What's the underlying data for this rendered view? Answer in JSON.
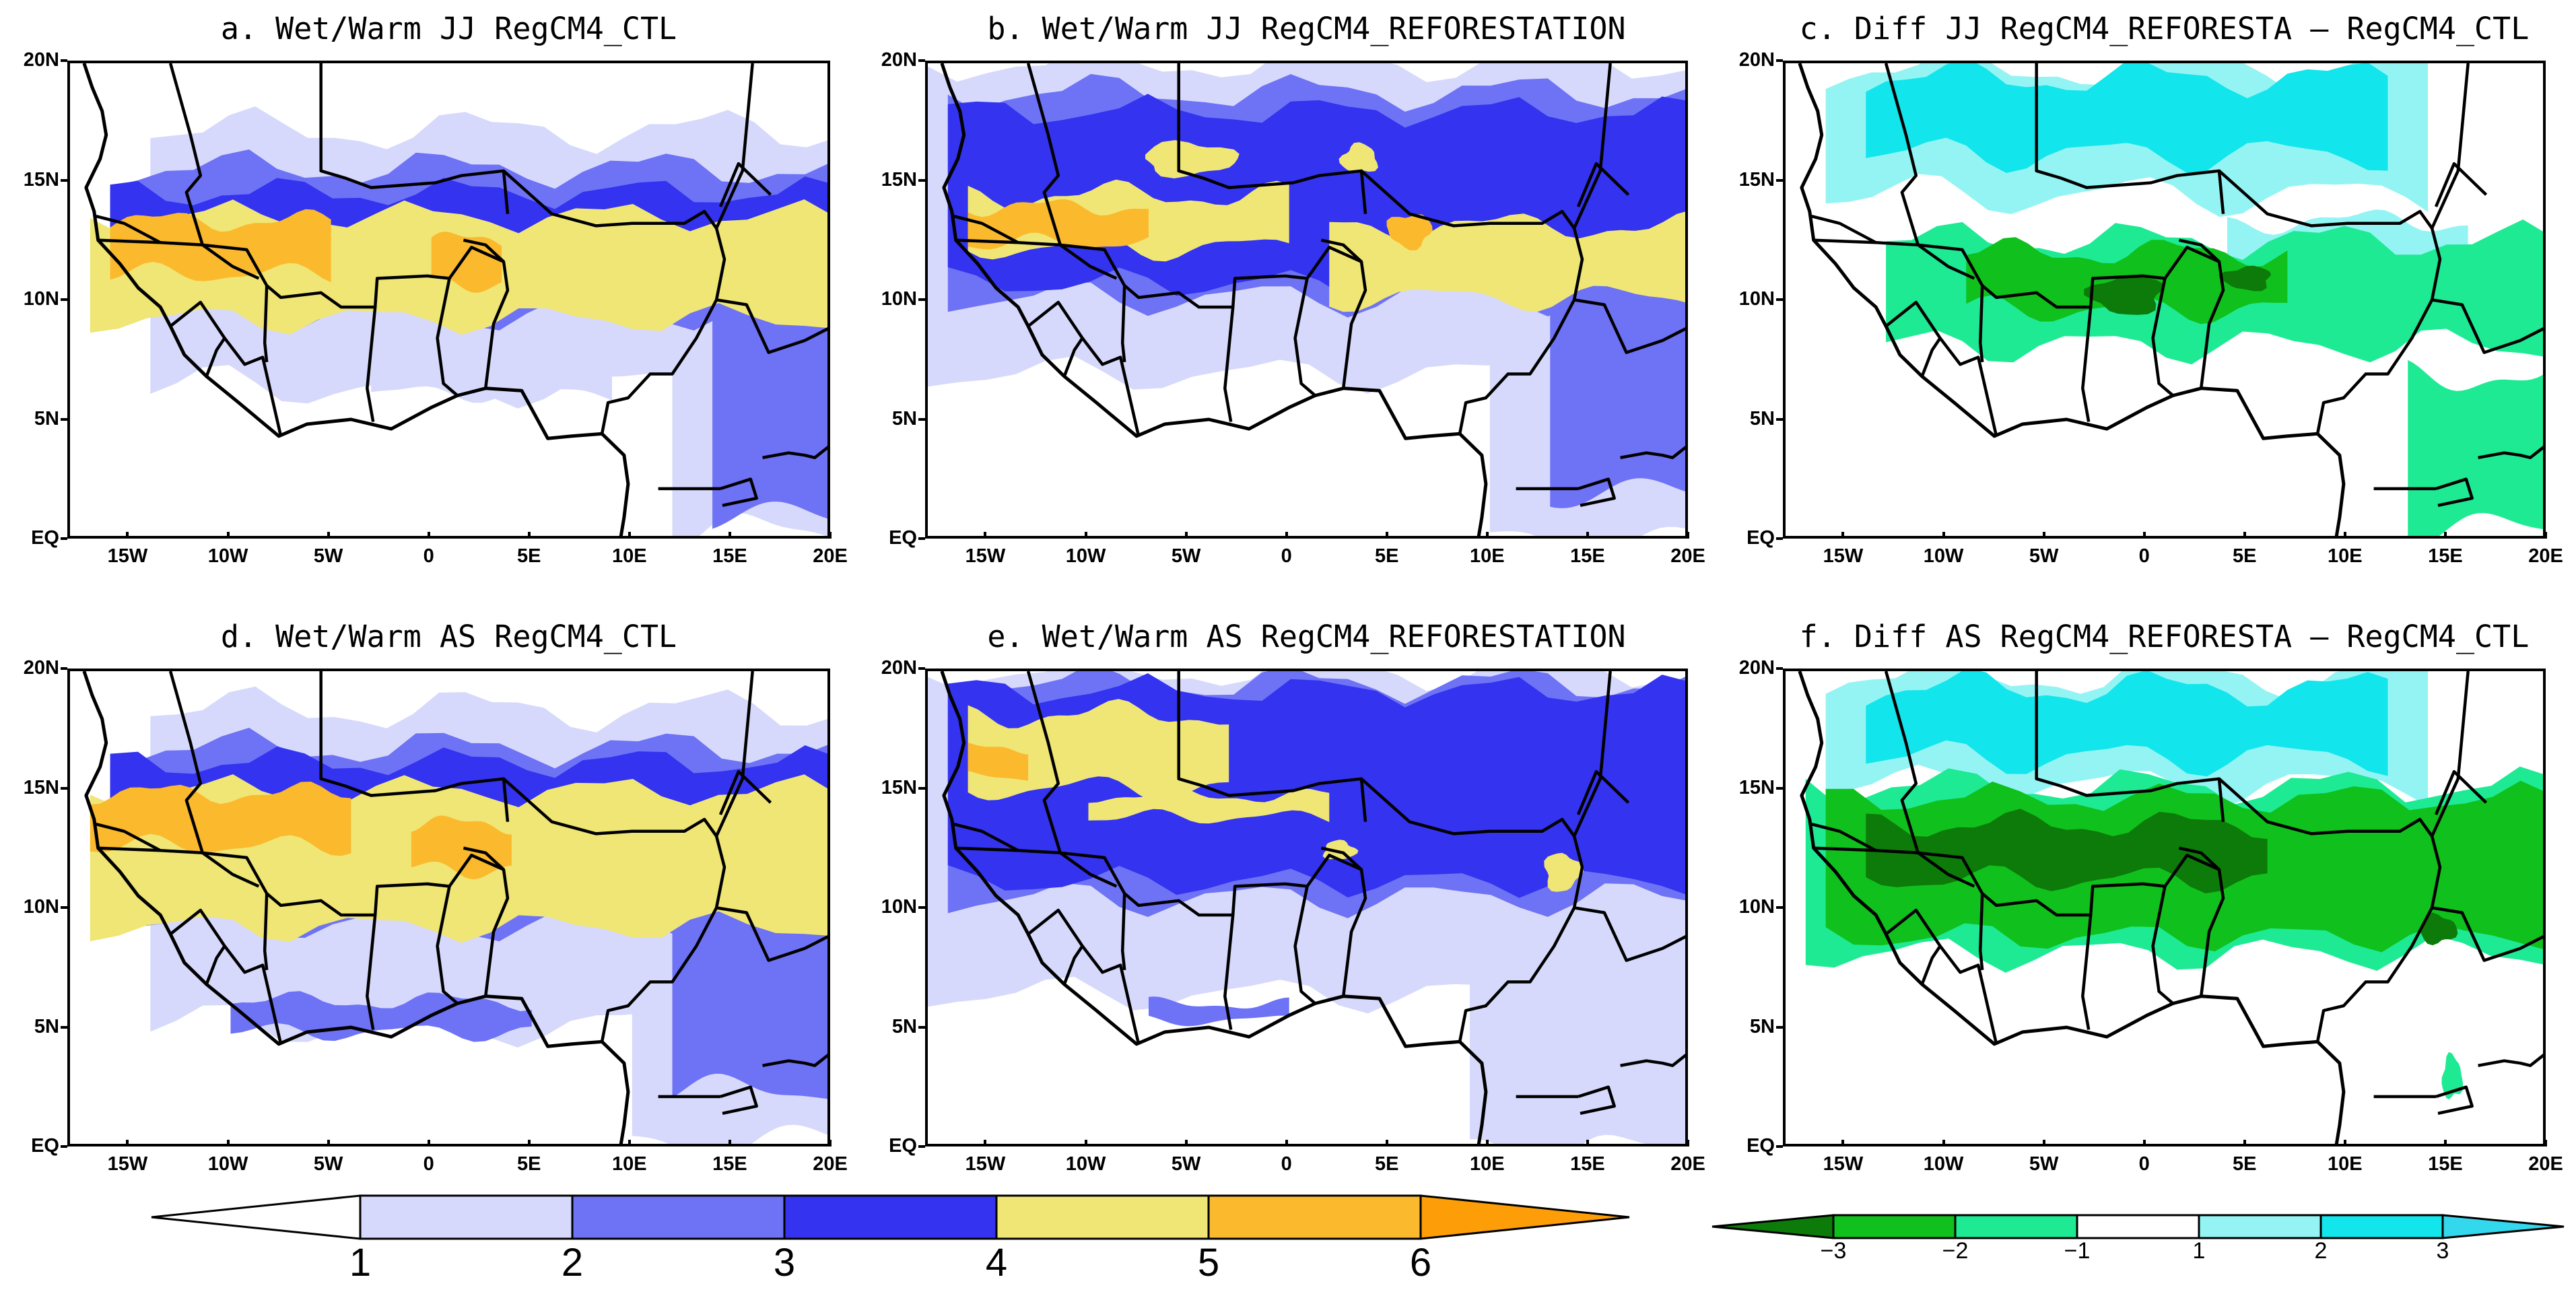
{
  "panels": [
    {
      "id": "a",
      "title": "a. Wet/Warm JJ RegCM4_CTL",
      "kind": "seq",
      "pattern": "ctl_jj"
    },
    {
      "id": "b",
      "title": "b. Wet/Warm JJ RegCM4_REFORESTATION",
      "kind": "seq",
      "pattern": "ref_jj"
    },
    {
      "id": "c",
      "title": "c. Diff JJ RegCM4_REFORESTA – RegCM4_CTL",
      "kind": "div",
      "pattern": "diff_jj"
    },
    {
      "id": "d",
      "title": "d. Wet/Warm AS RegCM4_CTL",
      "kind": "seq",
      "pattern": "ctl_as"
    },
    {
      "id": "e",
      "title": "e. Wet/Warm AS RegCM4_REFORESTATION",
      "kind": "seq",
      "pattern": "ref_as"
    },
    {
      "id": "f",
      "title": "f. Diff AS RegCM4_REFORESTA – RegCM4_CTL",
      "kind": "div",
      "pattern": "diff_as"
    }
  ],
  "axes": {
    "y_labels": [
      "20N",
      "15N",
      "10N",
      "5N",
      "EQ"
    ],
    "x_labels": [
      "15W",
      "10W",
      "5W",
      "0",
      "5E",
      "10E",
      "15E",
      "20E"
    ],
    "lon_range": [
      -18,
      20
    ],
    "lat_range": [
      0,
      20
    ]
  },
  "colorbar_wetwarm": {
    "labels": [
      "1",
      "2",
      "3",
      "4",
      "5",
      "6"
    ],
    "colors": {
      "below": "#ffffff",
      "bins": [
        "#d6d9fb",
        "#6e72f5",
        "#3333f0",
        "#f0e675",
        "#fbb92d"
      ],
      "above": "#fd9e08"
    }
  },
  "colorbar_diff": {
    "labels": [
      "−3",
      "−2",
      "−1",
      "1",
      "2",
      "3"
    ],
    "colors": {
      "below": "#0c7b09",
      "bins": [
        "#10c01c",
        "#1eea94",
        "#ffffff",
        "#94f4f4",
        "#12e6ec"
      ],
      "above": "#33d8ec"
    }
  },
  "colors": {
    "border": "#000000",
    "seq_levels": [
      "#ffffff",
      "#d6d9fb",
      "#6e72f5",
      "#3333f0",
      "#f0e675",
      "#fbb92d",
      "#fd9e08"
    ],
    "div_levels": [
      "#0c7b09",
      "#10c01c",
      "#1eea94",
      "#ffffff",
      "#94f4f4",
      "#12e6ec"
    ]
  }
}
